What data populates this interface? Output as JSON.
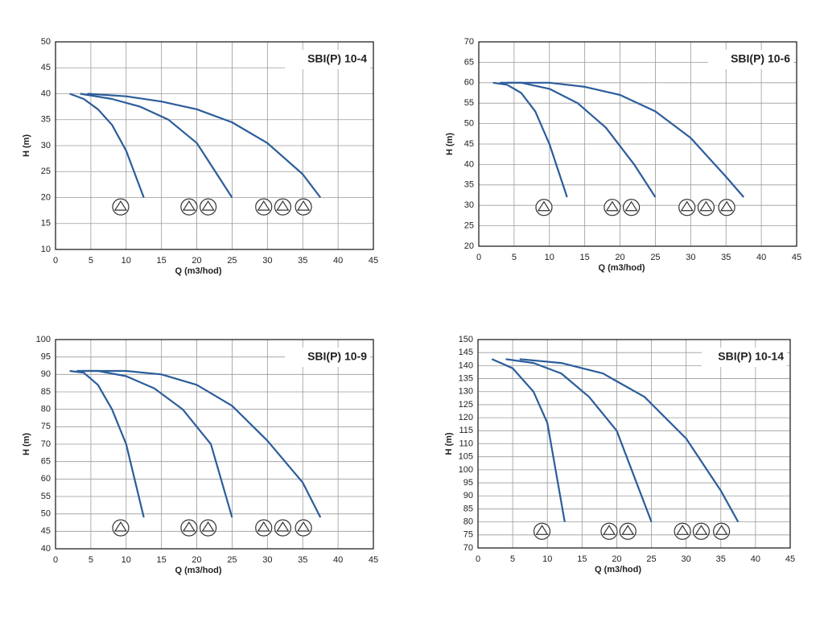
{
  "chart_data": [
    {
      "type": "line",
      "title": "SBI(P) 10-4",
      "xlabel": "Q (m3/hod)",
      "ylabel": "H (m)",
      "grid": true,
      "color": "#2b5d9b",
      "xlim": [
        0,
        45
      ],
      "xticks": [
        0,
        5,
        10,
        15,
        20,
        25,
        30,
        35,
        40,
        45
      ],
      "ylim": [
        10,
        50
      ],
      "yticks": [
        10,
        15,
        20,
        25,
        30,
        35,
        40,
        45,
        50
      ],
      "series": [
        {
          "x": [
            2,
            4,
            6,
            8,
            10,
            12.5
          ],
          "values": [
            40,
            39,
            37,
            34,
            29,
            20
          ]
        },
        {
          "x": [
            3.5,
            8,
            12,
            16,
            20,
            25
          ],
          "values": [
            40,
            39,
            37.5,
            35,
            30.5,
            20
          ]
        },
        {
          "x": [
            4.5,
            10,
            15,
            20,
            25,
            30,
            35,
            37.5
          ],
          "values": [
            40,
            39.5,
            38.5,
            37,
            34.5,
            30.5,
            24.5,
            20
          ]
        }
      ]
    },
    {
      "type": "line",
      "title": "SBI(P) 10-6",
      "xlabel": "Q (m3/hod)",
      "ylabel": "H (m)",
      "grid": true,
      "color": "#2b5d9b",
      "xlim": [
        0,
        45
      ],
      "xticks": [
        0,
        5,
        10,
        15,
        20,
        25,
        30,
        35,
        40,
        45
      ],
      "ylim": [
        20,
        70
      ],
      "yticks": [
        20,
        25,
        30,
        35,
        40,
        45,
        50,
        55,
        60,
        65,
        70
      ],
      "series": [
        {
          "x": [
            2,
            4,
            6,
            8,
            10,
            12.5
          ],
          "values": [
            60,
            59.5,
            57.5,
            53,
            45,
            32
          ]
        },
        {
          "x": [
            3,
            6,
            10,
            14,
            18,
            22,
            25
          ],
          "values": [
            60,
            60,
            58.5,
            55,
            49,
            40,
            32
          ]
        },
        {
          "x": [
            4,
            10,
            15,
            20,
            25,
            30,
            35,
            37.5
          ],
          "values": [
            60,
            60,
            59,
            57,
            53,
            46.5,
            37,
            32
          ]
        }
      ]
    },
    {
      "type": "line",
      "title": "SBI(P) 10-9",
      "xlabel": "Q (m3/hod)",
      "ylabel": "H (m)",
      "grid": true,
      "color": "#2b5d9b",
      "xlim": [
        0,
        45
      ],
      "xticks": [
        0,
        5,
        10,
        15,
        20,
        25,
        30,
        35,
        40,
        45
      ],
      "ylim": [
        40,
        100
      ],
      "yticks": [
        40,
        45,
        50,
        55,
        60,
        65,
        70,
        75,
        80,
        85,
        90,
        95,
        100
      ],
      "series": [
        {
          "x": [
            2,
            4,
            6,
            8,
            10,
            12.5
          ],
          "values": [
            91,
            90.5,
            87,
            80,
            70,
            49
          ]
        },
        {
          "x": [
            3,
            6,
            10,
            14,
            18,
            22,
            25
          ],
          "values": [
            91,
            91,
            89.5,
            86,
            80,
            70,
            49
          ]
        },
        {
          "x": [
            4,
            10,
            15,
            20,
            25,
            30,
            35,
            37.5
          ],
          "values": [
            91,
            91,
            90,
            87,
            81,
            71,
            59,
            49
          ]
        }
      ]
    },
    {
      "type": "line",
      "title": "SBI(P) 10-14",
      "xlabel": "Q (m3/hod)",
      "ylabel": "H (m)",
      "grid": true,
      "color": "#2b5d9b",
      "xlim": [
        0,
        45
      ],
      "xticks": [
        0,
        5,
        10,
        15,
        20,
        25,
        30,
        35,
        40,
        45
      ],
      "ylim": [
        70,
        150
      ],
      "yticks": [
        70,
        75,
        80,
        85,
        90,
        95,
        100,
        105,
        110,
        115,
        120,
        125,
        130,
        135,
        140,
        145,
        150
      ],
      "series": [
        {
          "x": [
            2,
            5,
            8,
            10,
            12.5
          ],
          "values": [
            142.5,
            139,
            130,
            118,
            80
          ]
        },
        {
          "x": [
            4,
            8,
            12,
            16,
            20,
            25
          ],
          "values": [
            142.5,
            141,
            137,
            128,
            115,
            80
          ]
        },
        {
          "x": [
            6,
            12,
            18,
            24,
            30,
            35,
            37.5
          ],
          "values": [
            142.5,
            141,
            137,
            128,
            112,
            92,
            80
          ]
        }
      ]
    }
  ]
}
